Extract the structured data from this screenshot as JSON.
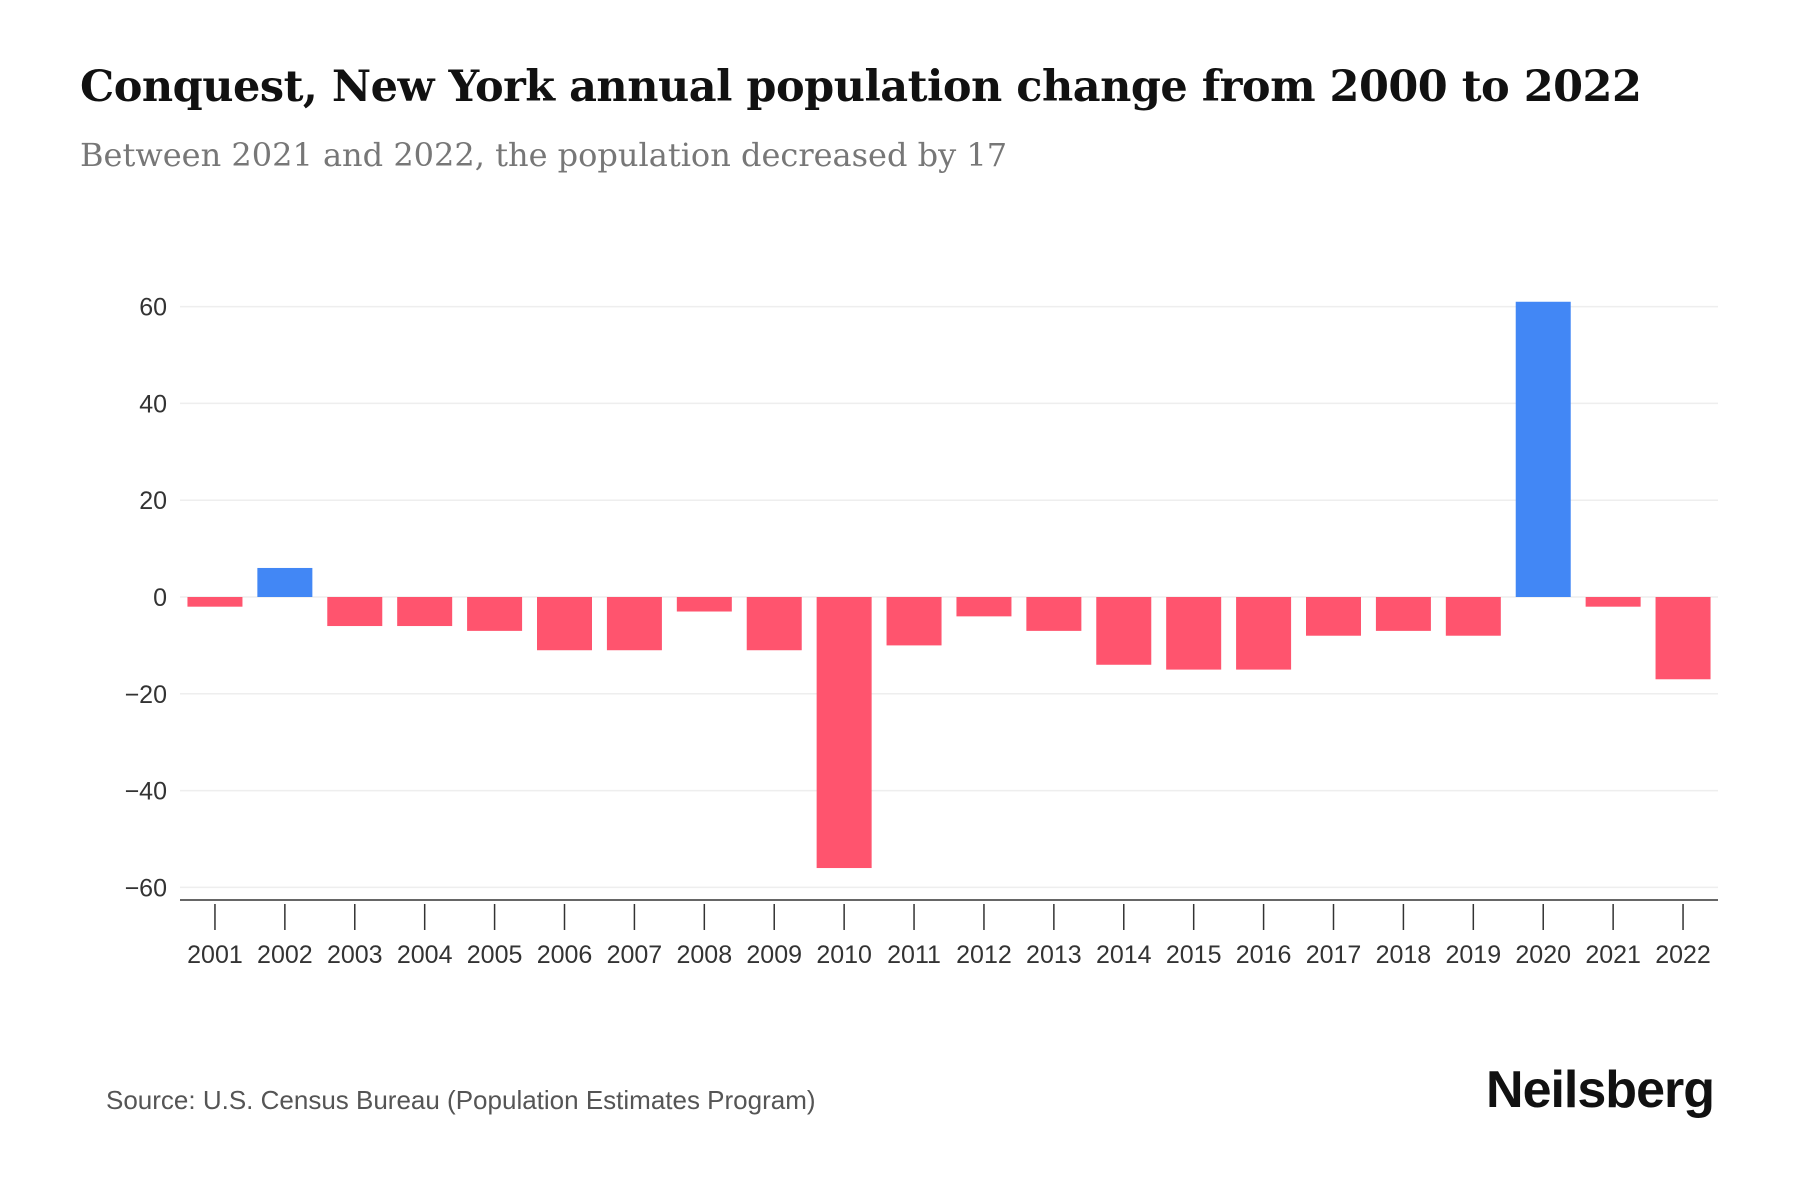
{
  "chart_data": {
    "type": "bar",
    "title": "Conquest, New York annual population change from 2000 to 2022",
    "subtitle": "Between 2021 and 2022, the population decreased by 17",
    "categories": [
      "2001",
      "2002",
      "2003",
      "2004",
      "2005",
      "2006",
      "2007",
      "2008",
      "2009",
      "2010",
      "2011",
      "2012",
      "2013",
      "2014",
      "2015",
      "2016",
      "2017",
      "2018",
      "2019",
      "2020",
      "2021",
      "2022"
    ],
    "values": [
      -2,
      6,
      -6,
      -6,
      -7,
      -11,
      -11,
      -3,
      -11,
      -56,
      -10,
      -4,
      -7,
      -14,
      -15,
      -15,
      -8,
      -7,
      -8,
      61,
      -2,
      -17
    ],
    "yticks": [
      60,
      40,
      20,
      0,
      -20,
      -40,
      -60
    ],
    "ytick_labels": [
      "60",
      "40",
      "20",
      "0",
      "−20",
      "−40",
      "−60"
    ],
    "ylim": [
      -63,
      63
    ],
    "xlabel": "",
    "ylabel": "",
    "grid": true,
    "colors": {
      "positive": "#4287F5",
      "negative": "#FF546E"
    }
  },
  "footer": {
    "source": "Source: U.S. Census Bureau (Population Estimates Program)",
    "logo": "Neilsberg"
  }
}
